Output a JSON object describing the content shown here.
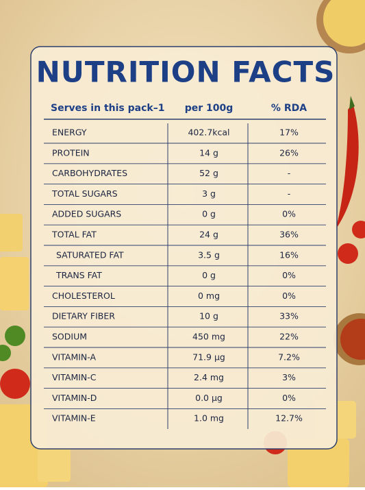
{
  "title": "NUTRITION FACTS",
  "table": {
    "header": [
      "Serves in this pack–1",
      "per 100g",
      "% RDA"
    ],
    "rows": [
      [
        "ENERGY",
        "402.7kcal",
        "17%"
      ],
      [
        "PROTEIN",
        "14 g",
        "26%"
      ],
      [
        "CARBOHYDRATES",
        "52 g",
        "-"
      ],
      [
        "TOTAL SUGARS",
        "3 g",
        "-"
      ],
      [
        "ADDED SUGARS",
        "0 g",
        "0%"
      ],
      [
        "TOTAL FAT",
        "24 g",
        "36%"
      ],
      [
        "SATURATED FAT",
        "3.5 g",
        "16%"
      ],
      [
        "TRANS FAT",
        "0 g",
        "0%"
      ],
      [
        "CHOLESTEROL",
        "0 mg",
        "0%"
      ],
      [
        "DIETARY FIBER",
        "10 g",
        "33%"
      ],
      [
        "SODIUM",
        "450 mg",
        "22%"
      ],
      [
        "VITAMIN-A",
        "71.9 µg",
        "7.2%"
      ],
      [
        "VITAMIN-C",
        "2.4 mg",
        "3%"
      ],
      [
        "VITAMIN-D",
        "0.0 µg",
        "0%"
      ],
      [
        "VITAMIN-E",
        "1.0 mg",
        "12.7%"
      ]
    ]
  }
}
